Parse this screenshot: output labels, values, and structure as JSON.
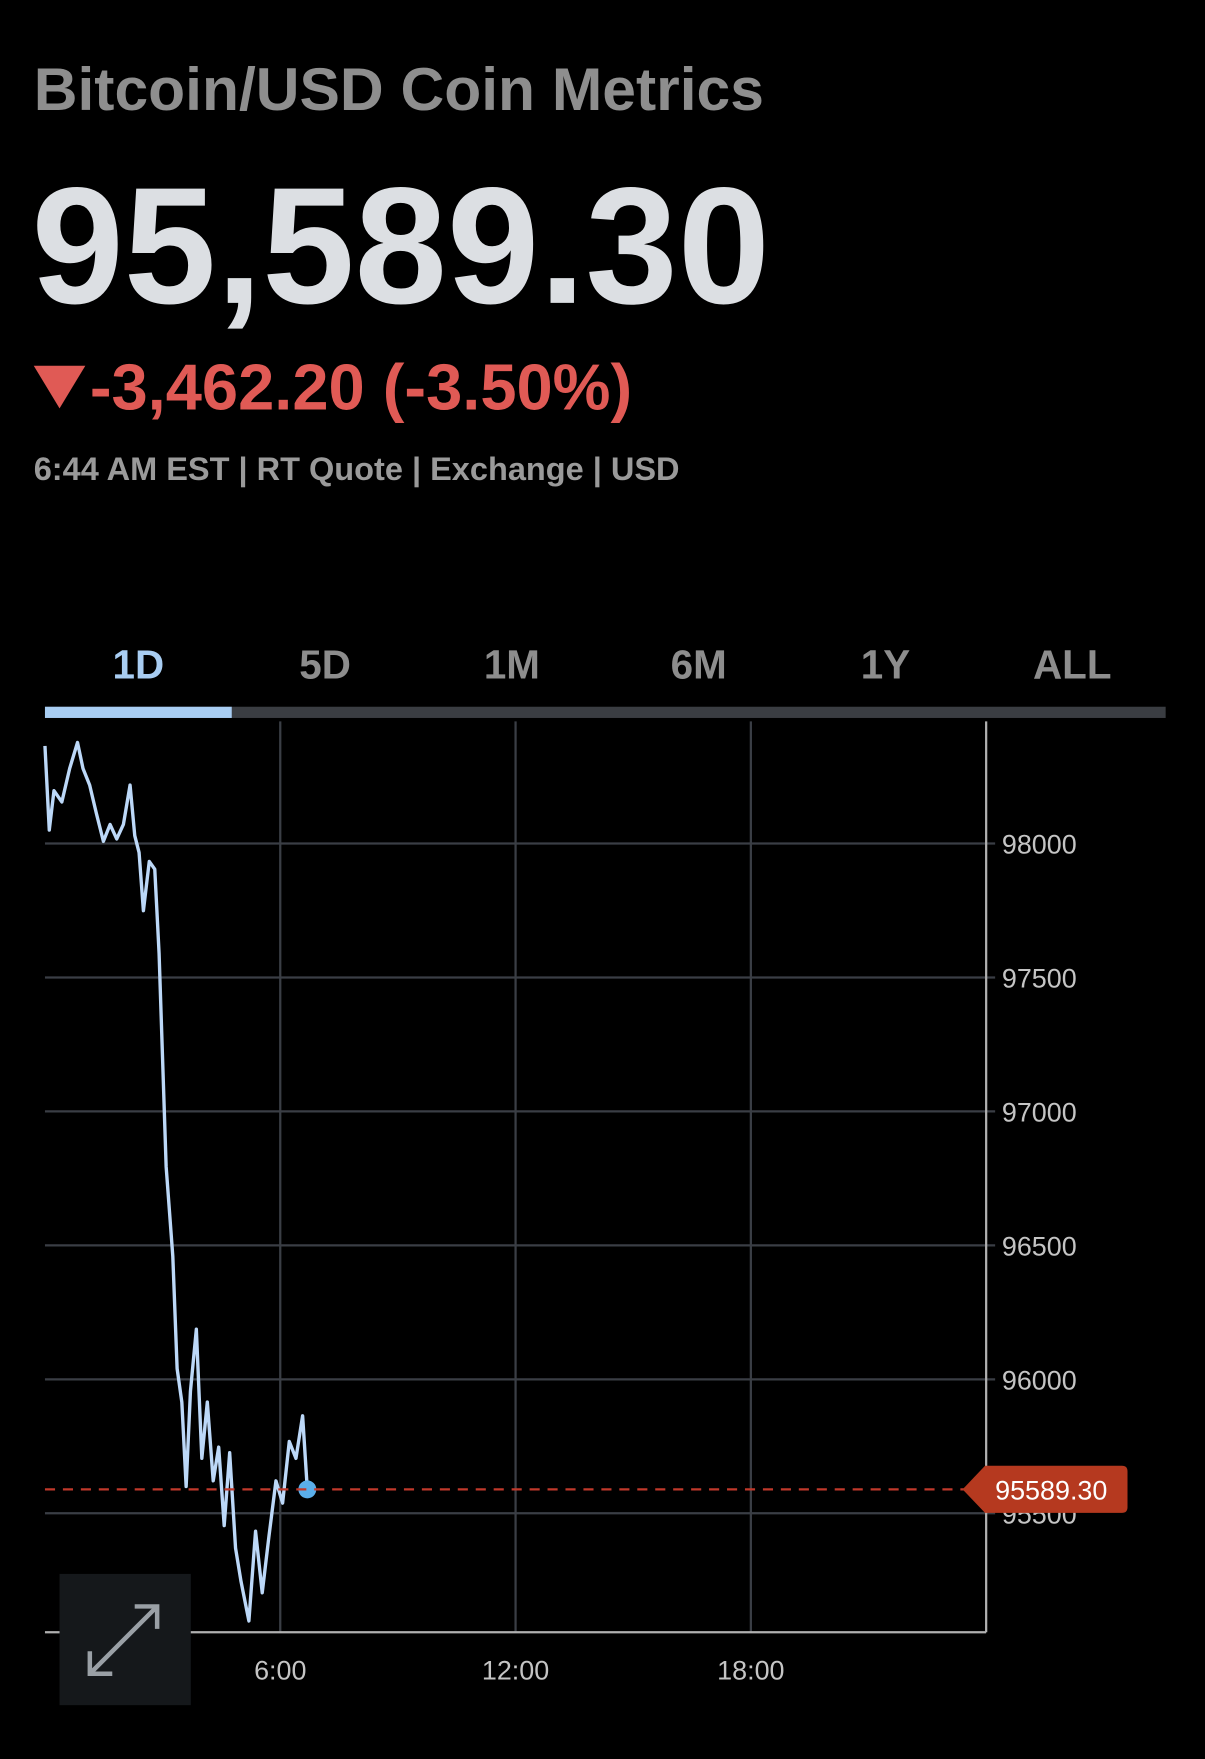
{
  "header": {
    "title": "Bitcoin/USD Coin Metrics",
    "price": "95,589.30",
    "change": "-3,462.20 (-3.50%)",
    "quote_info": "6:44 AM EST | RT Quote | Exchange | USD"
  },
  "tabs": [
    "1D",
    "5D",
    "1M",
    "6M",
    "1Y",
    "ALL"
  ],
  "active_tab": "1D",
  "chart_data": {
    "type": "line",
    "x": [
      0,
      0.11,
      0.23,
      0.43,
      0.63,
      0.83,
      0.97,
      1.14,
      1.31,
      1.49,
      1.66,
      1.83,
      2.0,
      2.17,
      2.29,
      2.4,
      2.51,
      2.66,
      2.8,
      2.91,
      3.09,
      3.26,
      3.37,
      3.49,
      3.6,
      3.71,
      3.86,
      4.0,
      4.14,
      4.29,
      4.43,
      4.57,
      4.71,
      4.86,
      5.0,
      5.2,
      5.37,
      5.54,
      5.71,
      5.89,
      6.06,
      6.23,
      6.4,
      6.57,
      6.69
    ],
    "values": [
      98364,
      98050,
      98197,
      98155,
      98280,
      98377,
      98280,
      98218,
      98113,
      98008,
      98071,
      98017,
      98071,
      98218,
      98029,
      97966,
      97749,
      97933,
      97904,
      97590,
      96794,
      96459,
      96040,
      95915,
      95600,
      95956,
      96187,
      95705,
      95915,
      95621,
      95747,
      95454,
      95726,
      95370,
      95245,
      95098,
      95433,
      95203,
      95412,
      95621,
      95538,
      95768,
      95705,
      95864,
      95589.3
    ],
    "color": "#bcd8f8",
    "xlim": [
      0,
      24
    ],
    "xticks": [
      {
        "value": 6,
        "label": "6:00"
      },
      {
        "value": 12,
        "label": "12:00"
      },
      {
        "value": 18,
        "label": "18:00"
      }
    ],
    "ylim": [
      95056,
      98456
    ],
    "yticks": [
      95500,
      96000,
      96500,
      97000,
      97500,
      98000
    ],
    "grid": true,
    "current_price": {
      "value": 95589.3,
      "label": "95589.30"
    }
  }
}
